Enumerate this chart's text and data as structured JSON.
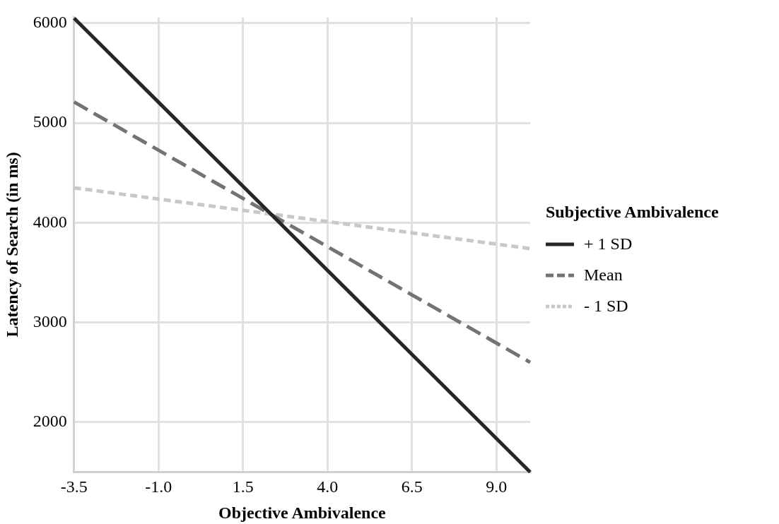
{
  "chart_data": {
    "type": "line",
    "xlabel": "Objective Ambivalence",
    "ylabel": "Latency of Search (in ms)",
    "legend_title": "Subjective Ambivalence",
    "x": [
      -3.5,
      10
    ],
    "xlim": [
      -3.5,
      10
    ],
    "xticks": [
      {
        "value": -3.5,
        "label": "-3.5"
      },
      {
        "value": -1,
        "label": "-1.0"
      },
      {
        "value": 1.5,
        "label": "1.5"
      },
      {
        "value": 4,
        "label": "4.0"
      },
      {
        "value": 6.5,
        "label": "6.5"
      },
      {
        "value": 9,
        "label": "9.0"
      }
    ],
    "ylim": [
      1500,
      6060
    ],
    "yticks": [
      2000,
      3000,
      4000,
      5000,
      6000
    ],
    "grid": true,
    "legend": "right",
    "marker": "none",
    "series": [
      {
        "name": "+ 1 SD",
        "color": "#262626",
        "line_style": "solid",
        "values": [
          6050,
          1500
        ]
      },
      {
        "name": "Mean",
        "color": "#737373",
        "line_style": "dashed",
        "values": [
          5210,
          2600
        ]
      },
      {
        "name": "- 1 SD",
        "color": "#c8c8c8",
        "line_style": "dotted",
        "values": [
          4350,
          3740
        ]
      }
    ]
  }
}
